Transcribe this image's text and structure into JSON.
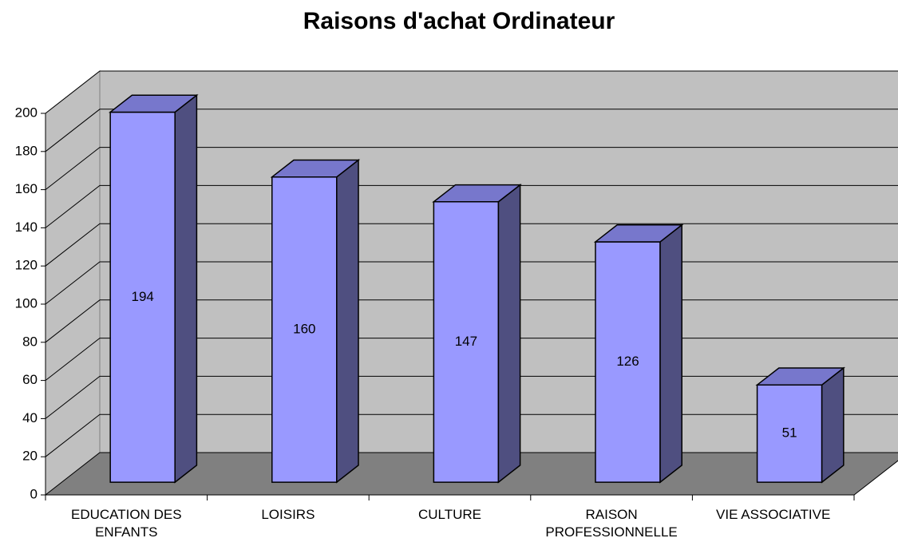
{
  "chart_data": {
    "type": "bar3d",
    "title": "Raisons d'achat Ordinateur",
    "categories": [
      "EDUCATION DES ENFANTS",
      "LOISIRS",
      "CULTURE",
      "RAISON PROFESSIONNELLE",
      "VIE ASSOCIATIVE"
    ],
    "values": [
      194,
      160,
      147,
      126,
      51
    ],
    "color": "#9999ff",
    "ylim": [
      0,
      200
    ],
    "yticks": [
      0,
      20,
      40,
      60,
      80,
      100,
      120,
      140,
      160,
      180,
      200
    ],
    "grid": true
  }
}
